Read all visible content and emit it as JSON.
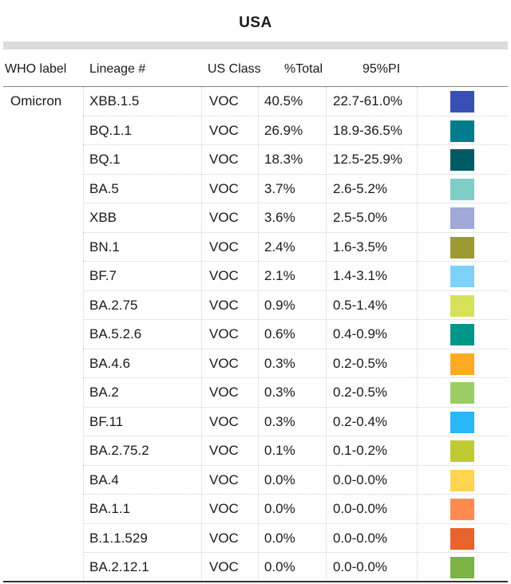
{
  "title": "USA",
  "headers": {
    "who_label": "WHO label",
    "lineage": "Lineage #",
    "us_class": "US Class",
    "total": "%Total",
    "pi": "95%PI"
  },
  "who_label_value": "Omicron",
  "rows": [
    {
      "lineage": "XBB.1.5",
      "class": "VOC",
      "total": "40.5%",
      "pi": "22.7-61.0%",
      "color": "#3a4fb5"
    },
    {
      "lineage": "BQ.1.1",
      "class": "VOC",
      "total": "26.9%",
      "pi": "18.9-36.5%",
      "color": "#007c8a"
    },
    {
      "lineage": "BQ.1",
      "class": "VOC",
      "total": "18.3%",
      "pi": "12.5-25.9%",
      "color": "#005a63"
    },
    {
      "lineage": "BA.5",
      "class": "VOC",
      "total": "3.7%",
      "pi": "2.6-5.2%",
      "color": "#7fcdc7"
    },
    {
      "lineage": "XBB",
      "class": "VOC",
      "total": "3.6%",
      "pi": "2.5-5.0%",
      "color": "#a1a9d9"
    },
    {
      "lineage": "BN.1",
      "class": "VOC",
      "total": "2.4%",
      "pi": "1.6-3.5%",
      "color": "#9b9b32"
    },
    {
      "lineage": "BF.7",
      "class": "VOC",
      "total": "2.1%",
      "pi": "1.4-3.1%",
      "color": "#7fd2f7"
    },
    {
      "lineage": "BA.2.75",
      "class": "VOC",
      "total": "0.9%",
      "pi": "0.5-1.4%",
      "color": "#d7e15a"
    },
    {
      "lineage": "BA.5.2.6",
      "class": "VOC",
      "total": "0.6%",
      "pi": "0.4-0.9%",
      "color": "#009688"
    },
    {
      "lineage": "BA.4.6",
      "class": "VOC",
      "total": "0.3%",
      "pi": "0.2-0.5%",
      "color": "#ffaa22"
    },
    {
      "lineage": "BA.2",
      "class": "VOC",
      "total": "0.3%",
      "pi": "0.2-0.5%",
      "color": "#9ccc65"
    },
    {
      "lineage": "BF.11",
      "class": "VOC",
      "total": "0.3%",
      "pi": "0.2-0.4%",
      "color": "#29b6f6"
    },
    {
      "lineage": "BA.2.75.2",
      "class": "VOC",
      "total": "0.1%",
      "pi": "0.1-0.2%",
      "color": "#c0ca33"
    },
    {
      "lineage": "BA.4",
      "class": "VOC",
      "total": "0.0%",
      "pi": "0.0-0.0%",
      "color": "#ffd54f"
    },
    {
      "lineage": "BA.1.1",
      "class": "VOC",
      "total": "0.0%",
      "pi": "0.0-0.0%",
      "color": "#ff8a50"
    },
    {
      "lineage": "B.1.1.529",
      "class": "VOC",
      "total": "0.0%",
      "pi": "0.0-0.0%",
      "color": "#e8622c"
    },
    {
      "lineage": "BA.2.12.1",
      "class": "VOC",
      "total": "0.0%",
      "pi": "0.0-0.0%",
      "color": "#7cb342"
    }
  ]
}
